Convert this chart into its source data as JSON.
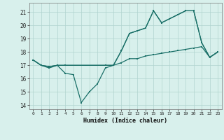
{
  "xlabel": "Humidex (Indice chaleur)",
  "background_color": "#d8f0ec",
  "grid_color": "#b0d4ce",
  "line_color": "#1a7068",
  "xlim": [
    -0.5,
    23.5
  ],
  "ylim": [
    13.7,
    21.7
  ],
  "xticks": [
    0,
    1,
    2,
    3,
    4,
    5,
    6,
    7,
    8,
    9,
    10,
    11,
    12,
    13,
    14,
    15,
    16,
    17,
    18,
    19,
    20,
    21,
    22,
    23
  ],
  "yticks": [
    14,
    15,
    16,
    17,
    18,
    19,
    20,
    21
  ],
  "line1_x": [
    0,
    1,
    2,
    3,
    4,
    5,
    6,
    7,
    8,
    9,
    10,
    11,
    12,
    13,
    14,
    15,
    16,
    17,
    18,
    19,
    20,
    21,
    22,
    23
  ],
  "line1_y": [
    17.4,
    17.0,
    16.8,
    17.0,
    16.4,
    16.3,
    14.2,
    15.0,
    15.6,
    16.8,
    17.0,
    18.1,
    19.4,
    19.6,
    19.8,
    21.1,
    20.2,
    20.5,
    20.8,
    21.1,
    21.1,
    18.7,
    17.6,
    18.0
  ],
  "line2_x": [
    0,
    1,
    2,
    3,
    4,
    9,
    10,
    11,
    12,
    13,
    14,
    15,
    16,
    17,
    18,
    19,
    20,
    21,
    22,
    23
  ],
  "line2_y": [
    17.4,
    17.0,
    16.9,
    17.0,
    17.0,
    17.0,
    17.0,
    17.2,
    17.5,
    17.5,
    17.7,
    17.8,
    17.9,
    18.0,
    18.1,
    18.2,
    18.3,
    18.4,
    17.6,
    18.0
  ],
  "line3_x": [
    0,
    1,
    2,
    3,
    4,
    9,
    10,
    11,
    12,
    13,
    14,
    15,
    16,
    17,
    18,
    19,
    20,
    21,
    22,
    23
  ],
  "line3_y": [
    17.4,
    17.0,
    16.9,
    17.0,
    17.0,
    17.0,
    17.0,
    18.1,
    19.4,
    19.6,
    19.8,
    21.1,
    20.2,
    20.5,
    20.8,
    21.1,
    21.1,
    18.7,
    17.6,
    18.0
  ]
}
